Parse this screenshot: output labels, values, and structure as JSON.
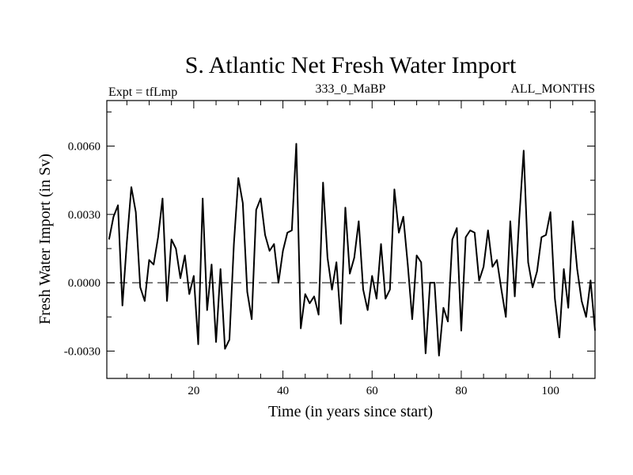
{
  "chart_data": {
    "type": "line",
    "title": "S. Atlantic Net Fresh Water Import",
    "subtitle_left": "Expt = tfLmp",
    "subtitle_center": "333_0_MaBP",
    "subtitle_right": "ALL_MONTHS",
    "xlabel": "Time (in years since start)",
    "ylabel": "Fresh Water Import (in Sv)",
    "xlim": [
      0.5,
      110
    ],
    "ylim": [
      -0.0042,
      0.008
    ],
    "xticks_major": [
      20,
      40,
      60,
      80,
      100
    ],
    "xtick_labels": [
      "20",
      "40",
      "60",
      "80",
      "100"
    ],
    "xticks_minor": [
      5,
      10,
      15,
      25,
      30,
      35,
      45,
      50,
      55,
      65,
      70,
      75,
      85,
      90,
      95,
      105
    ],
    "yticks_major": [
      -0.003,
      0.0,
      0.003,
      0.006
    ],
    "ytick_labels": [
      "-0.0030",
      "0.0000",
      "0.0030",
      "0.0060"
    ],
    "yticks_minor": [
      -0.0015,
      0.0015,
      0.0045,
      0.0075
    ],
    "reference_line_y": 0.0,
    "series": [
      {
        "name": "fresh_water_import",
        "x": [
          1,
          2,
          3,
          4,
          5,
          6,
          7,
          8,
          9,
          10,
          11,
          12,
          13,
          14,
          15,
          16,
          17,
          18,
          19,
          20,
          21,
          22,
          23,
          24,
          25,
          26,
          27,
          28,
          29,
          30,
          31,
          32,
          33,
          34,
          35,
          36,
          37,
          38,
          39,
          40,
          41,
          42,
          43,
          44,
          45,
          46,
          47,
          48,
          49,
          50,
          51,
          52,
          53,
          54,
          55,
          56,
          57,
          58,
          59,
          60,
          61,
          62,
          63,
          64,
          65,
          66,
          67,
          68,
          69,
          70,
          71,
          72,
          73,
          74,
          75,
          76,
          77,
          78,
          79,
          80,
          81,
          82,
          83,
          84,
          85,
          86,
          87,
          88,
          89,
          90,
          91,
          92,
          93,
          94,
          95,
          96,
          97,
          98,
          99,
          100,
          101,
          102,
          103,
          104,
          105,
          106,
          107,
          108,
          109,
          110
        ],
        "values": [
          0.0019,
          0.0029,
          0.0034,
          -0.001,
          0.0018,
          0.0042,
          0.0031,
          -0.0002,
          -0.0008,
          0.001,
          0.0008,
          0.002,
          0.0037,
          -0.0008,
          0.0019,
          0.0015,
          0.0002,
          0.0012,
          -0.0005,
          0.0003,
          -0.0027,
          0.0037,
          -0.0012,
          0.0008,
          -0.0026,
          0.0006,
          -0.0029,
          -0.0025,
          0.0017,
          0.0046,
          0.0035,
          -0.0004,
          -0.0016,
          0.0032,
          0.0037,
          0.0021,
          0.0014,
          0.0017,
          0.0,
          0.0014,
          0.0022,
          0.0023,
          0.0061,
          -0.002,
          -0.0005,
          -0.0009,
          -0.0006,
          -0.0014,
          0.0044,
          0.0011,
          -0.0003,
          0.0009,
          -0.0018,
          0.0033,
          0.0004,
          0.0011,
          0.0027,
          -0.0003,
          -0.0012,
          0.0003,
          -0.0007,
          0.0017,
          -0.0007,
          -0.0003,
          0.0041,
          0.0022,
          0.0029,
          0.0008,
          -0.0016,
          0.0012,
          0.0009,
          -0.0031,
          0.0,
          0.0,
          -0.0032,
          -0.0011,
          -0.0017,
          0.0019,
          0.0024,
          -0.0021,
          0.002,
          0.0023,
          0.0022,
          0.0001,
          0.0007,
          0.0023,
          0.0007,
          0.001,
          -0.0003,
          -0.0015,
          0.0027,
          -0.0006,
          0.0028,
          0.0058,
          0.0009,
          -0.0002,
          0.0005,
          0.002,
          0.0021,
          0.0031,
          -0.0007,
          -0.0024,
          0.0006,
          -0.0011,
          0.0027,
          0.0006,
          -0.0008,
          -0.0015,
          0.0001,
          -0.0021
        ]
      }
    ]
  }
}
